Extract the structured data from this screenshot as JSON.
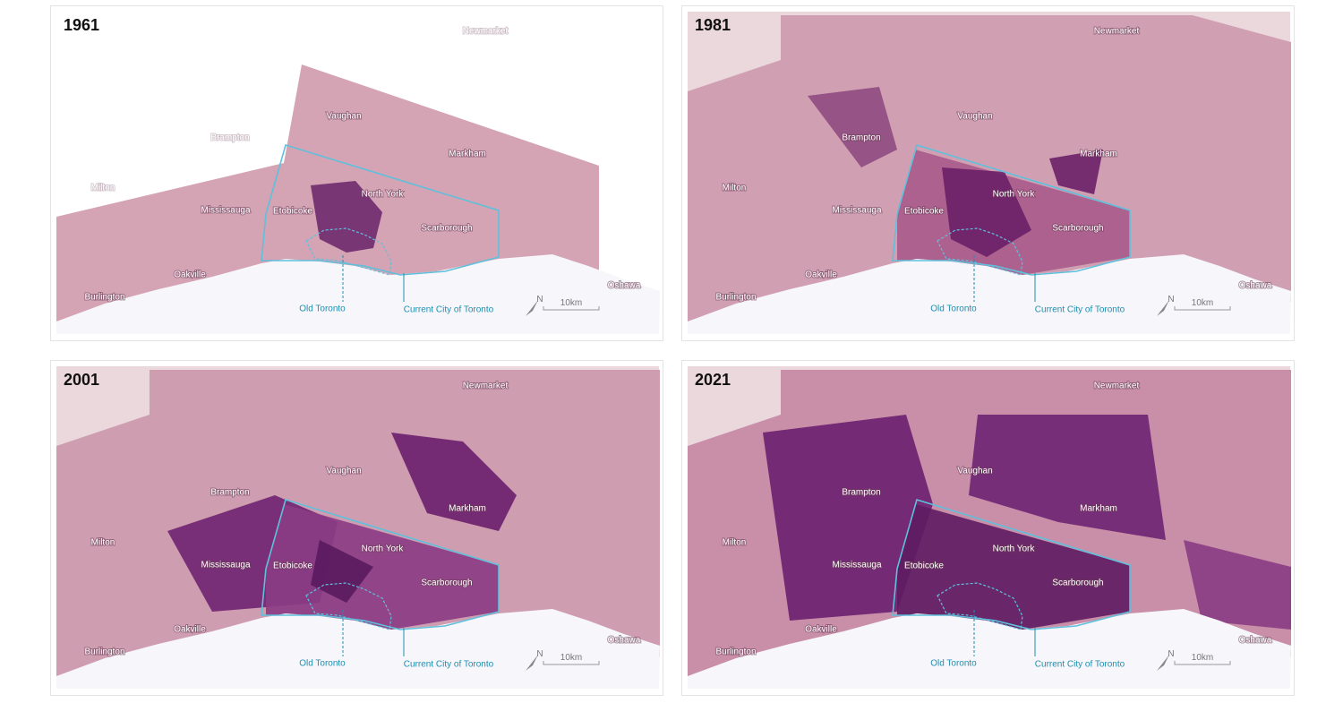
{
  "panels": [
    {
      "year": "1961",
      "places": [
        "Newmarket",
        "Vaughan",
        "Brampton",
        "Markham",
        "Milton",
        "North York",
        "Mississauga",
        "Etobicoke",
        "Scarborough",
        "Oakville",
        "Burlington",
        "Oshawa"
      ],
      "old_toronto": "Old Toronto",
      "current_city": "Current City of Toronto",
      "scale": "10km",
      "north": "N"
    },
    {
      "year": "1981",
      "places": [
        "Newmarket",
        "Vaughan",
        "Brampton",
        "Markham",
        "Milton",
        "North York",
        "Mississauga",
        "Etobicoke",
        "Scarborough",
        "Oakville",
        "Burlington",
        "Oshawa"
      ],
      "old_toronto": "Old Toronto",
      "current_city": "Current City of Toronto",
      "scale": "10km",
      "north": "N"
    },
    {
      "year": "2001",
      "places": [
        "Newmarket",
        "Vaughan",
        "Brampton",
        "Markham",
        "Milton",
        "North York",
        "Mississauga",
        "Etobicoke",
        "Scarborough",
        "Oakville",
        "Burlington",
        "Oshawa"
      ],
      "old_toronto": "Old Toronto",
      "current_city": "Current City of Toronto",
      "scale": "10km",
      "north": "N"
    },
    {
      "year": "2021",
      "places": [
        "Newmarket",
        "Vaughan",
        "Brampton",
        "Markham",
        "Milton",
        "North York",
        "Mississauga",
        "Etobicoke",
        "Scarborough",
        "Oakville",
        "Burlington",
        "Oshawa"
      ],
      "old_toronto": "Old Toronto",
      "current_city": "Current City of Toronto",
      "scale": "10km",
      "north": "N"
    }
  ]
}
